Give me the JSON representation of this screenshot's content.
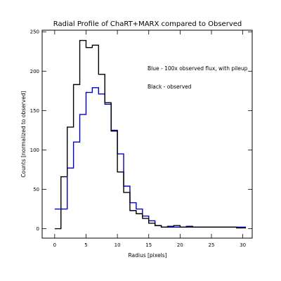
{
  "chart_data": {
    "type": "line",
    "step": true,
    "title": "Radial Profile of ChaRT+MARX compared to Observed",
    "xlabel": "Radius [pixels]",
    "ylabel": "Counts [normalized to observed]",
    "xlim": [
      -2,
      31.5
    ],
    "ylim": [
      -12,
      252
    ],
    "xticks": [
      0,
      5,
      10,
      15,
      20,
      25,
      30
    ],
    "yticks": [
      0,
      50,
      100,
      150,
      200,
      250
    ],
    "grid": false,
    "annotations": [
      "Blue - 100x observed flux, with pileup",
      "Black - observed"
    ],
    "series": [
      {
        "color": "#000000",
        "x": [
          0,
          1,
          2,
          3,
          4,
          5,
          6,
          7,
          8,
          9,
          10,
          11,
          12,
          13,
          14,
          15,
          16,
          17,
          18,
          19,
          20,
          21,
          22,
          23,
          24,
          25,
          26,
          27,
          28,
          29,
          30
        ],
        "values": [
          0,
          66,
          129,
          183,
          239,
          230,
          233,
          196,
          160,
          124,
          72,
          46,
          23,
          19,
          13,
          7,
          4,
          2,
          3,
          4,
          2,
          3,
          2,
          2,
          2,
          2,
          2,
          2,
          2,
          1,
          1
        ]
      },
      {
        "color": "#0000cc",
        "x": [
          0,
          1,
          2,
          3,
          4,
          5,
          6,
          7,
          8,
          9,
          10,
          11,
          12,
          13,
          14,
          15,
          16,
          17,
          18,
          19,
          20,
          21,
          22,
          23,
          24,
          25,
          26,
          27,
          28,
          29,
          30
        ],
        "values": [
          25,
          25,
          77,
          110,
          145,
          173,
          179,
          171,
          158,
          125,
          95,
          54,
          33,
          25,
          16,
          10,
          4,
          2,
          2,
          2,
          2,
          2,
          2,
          2,
          2,
          2,
          2,
          2,
          2,
          2,
          2
        ]
      }
    ]
  }
}
